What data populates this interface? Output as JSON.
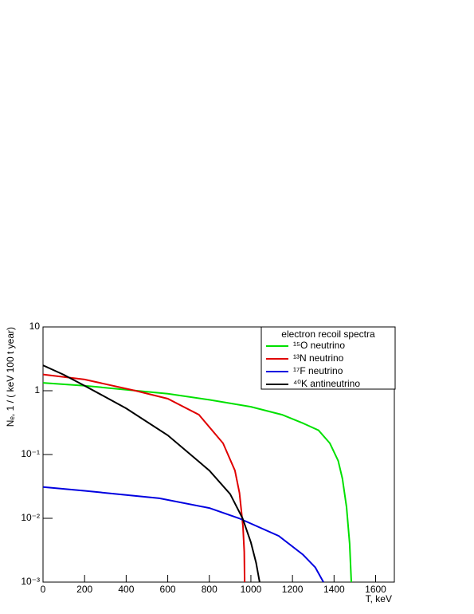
{
  "chart_data": {
    "type": "line",
    "xlabel": "T, keV",
    "ylabel": "Nₑ, 1 / ( keV 100 t year)",
    "legend_title": "electron recoil spectra",
    "legend": "upper right",
    "log_y": true,
    "xlim": [
      0,
      1690
    ],
    "ylim": [
      0.001,
      10
    ],
    "xticks": [
      0,
      200,
      400,
      600,
      800,
      1000,
      1200,
      1400,
      1600
    ],
    "yticks": [
      {
        "value": 0.001,
        "label": "10⁻³"
      },
      {
        "value": 0.01,
        "label": "10⁻²"
      },
      {
        "value": 0.1,
        "label": "10⁻¹"
      },
      {
        "value": 1,
        "label": "1"
      },
      {
        "value": 10,
        "label": "10"
      }
    ],
    "series": [
      {
        "name": "¹⁵O neutrino",
        "color": "#00e000",
        "x": [
          0,
          200,
          450,
          600,
          800,
          1000,
          1150,
          1250,
          1325,
          1380,
          1420,
          1440,
          1460,
          1475,
          1483
        ],
        "values": [
          1.33,
          1.2,
          1.0,
          0.9,
          0.72,
          0.56,
          0.42,
          0.31,
          0.24,
          0.15,
          0.08,
          0.042,
          0.015,
          0.004,
          0.001
        ]
      },
      {
        "name": "¹³N neutrino",
        "color": "#e00000",
        "x": [
          0,
          200,
          445,
          600,
          750,
          866,
          923,
          945,
          962,
          968,
          970
        ],
        "values": [
          1.8,
          1.5,
          1.0,
          0.75,
          0.42,
          0.15,
          0.056,
          0.025,
          0.0075,
          0.003,
          0.001
        ]
      },
      {
        "name": "¹⁷F neutrino",
        "color": "#0000e0",
        "x": [
          0,
          200,
          560,
          800,
          943,
          1134,
          1250,
          1310,
          1349
        ],
        "values": [
          0.031,
          0.027,
          0.0206,
          0.0145,
          0.01,
          0.0053,
          0.0027,
          0.0017,
          0.001
        ]
      },
      {
        "name": "⁴⁰K antineutrino",
        "color": "#000000",
        "x": [
          0,
          100,
          200,
          400,
          600,
          800,
          900,
          960,
          1000,
          1025,
          1042
        ],
        "values": [
          2.5,
          1.78,
          1.2,
          0.53,
          0.2,
          0.056,
          0.024,
          0.01,
          0.0042,
          0.002,
          0.001
        ]
      }
    ]
  }
}
